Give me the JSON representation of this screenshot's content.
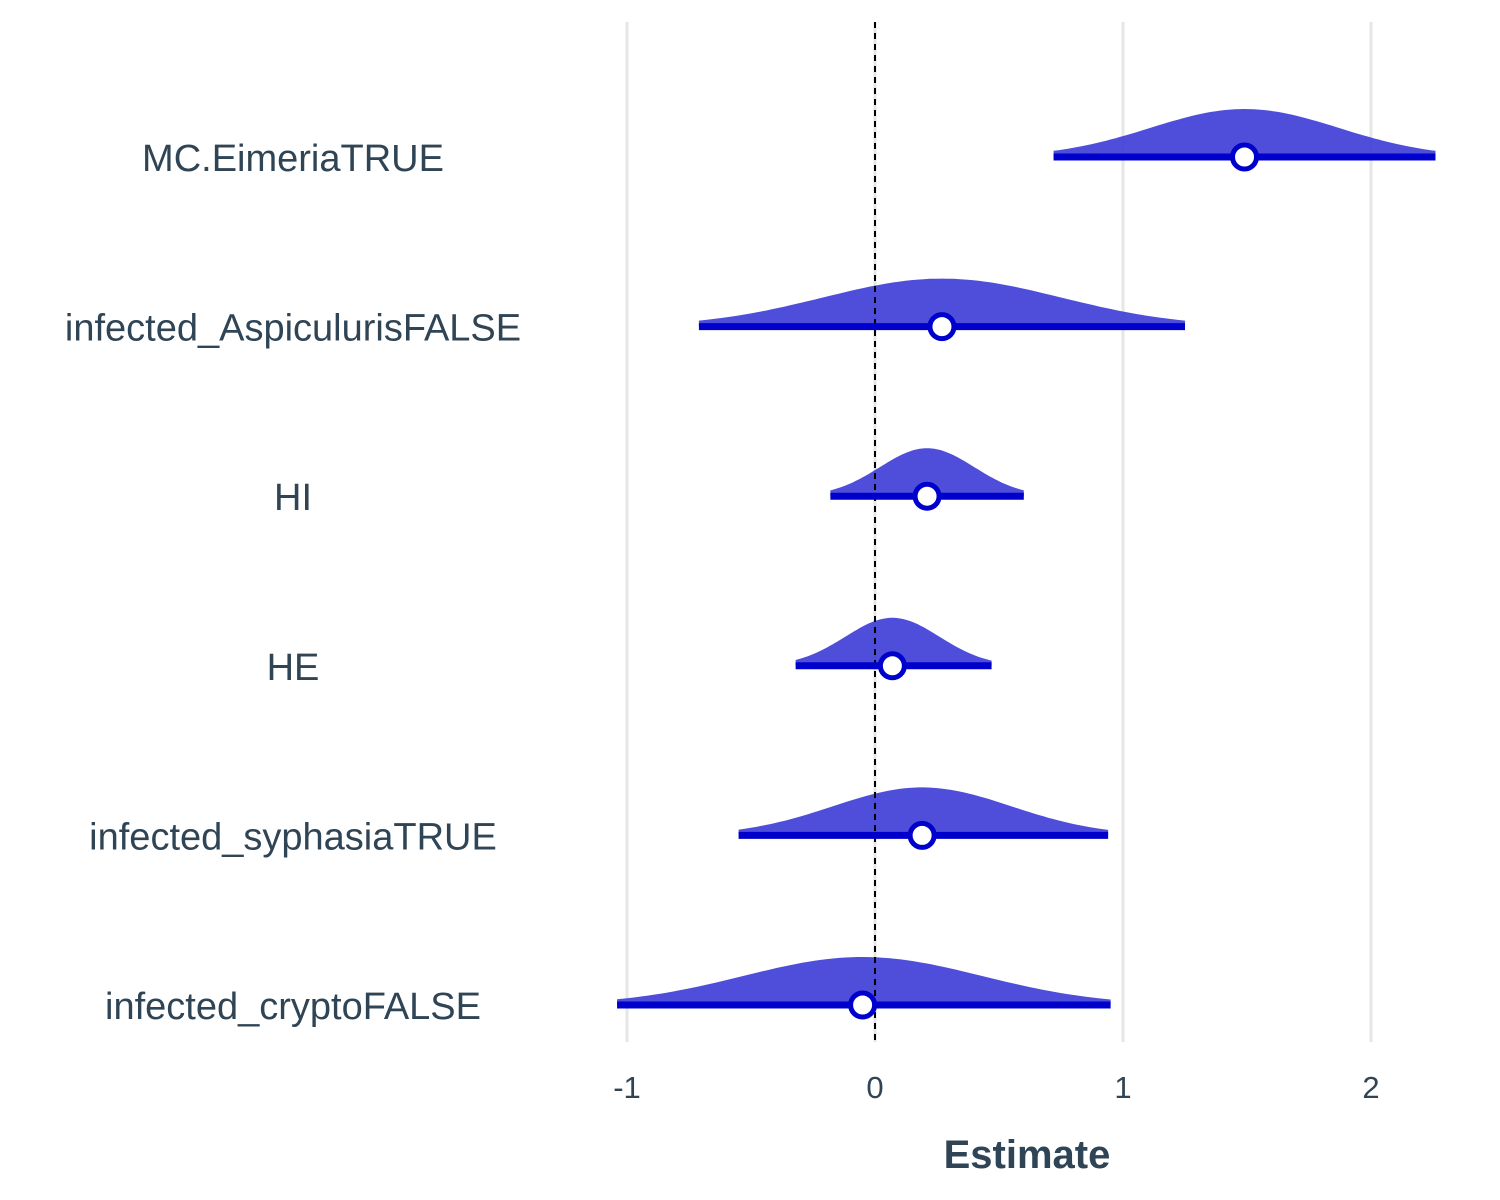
{
  "chart_data": {
    "type": "forest-density",
    "xlabel": "Estimate",
    "xlim": [
      -1.0,
      2.3
    ],
    "x_ticks": [
      -1,
      0,
      1,
      2
    ],
    "x_tick_labels": [
      "-1",
      "0",
      "1",
      "2"
    ],
    "reference_line": 0,
    "grid": "vertical-major",
    "colors": {
      "fill": "#3f3fd8",
      "line": "#0000cc",
      "point_fill": "#ffffff",
      "text": "#2f4455",
      "grid": "#e6e6e6"
    },
    "terms": [
      {
        "name": "MC.EimeriaTRUE",
        "estimate": 1.49,
        "ci_low": 0.72,
        "ci_high": 2.26,
        "sd": 0.38
      },
      {
        "name": "infected_AspiculurisFALSE",
        "estimate": 0.27,
        "ci_low": -0.71,
        "ci_high": 1.25,
        "sd": 0.48
      },
      {
        "name": "HI",
        "estimate": 0.21,
        "ci_low": -0.18,
        "ci_high": 0.6,
        "sd": 0.19
      },
      {
        "name": "HE",
        "estimate": 0.07,
        "ci_low": -0.32,
        "ci_high": 0.47,
        "sd": 0.19
      },
      {
        "name": "infected_syphasiaTRUE",
        "estimate": 0.19,
        "ci_low": -0.55,
        "ci_high": 0.94,
        "sd": 0.36
      },
      {
        "name": "infected_cryptoFALSE",
        "estimate": -0.05,
        "ci_low": -1.04,
        "ci_high": 0.95,
        "sd": 0.48
      }
    ]
  }
}
